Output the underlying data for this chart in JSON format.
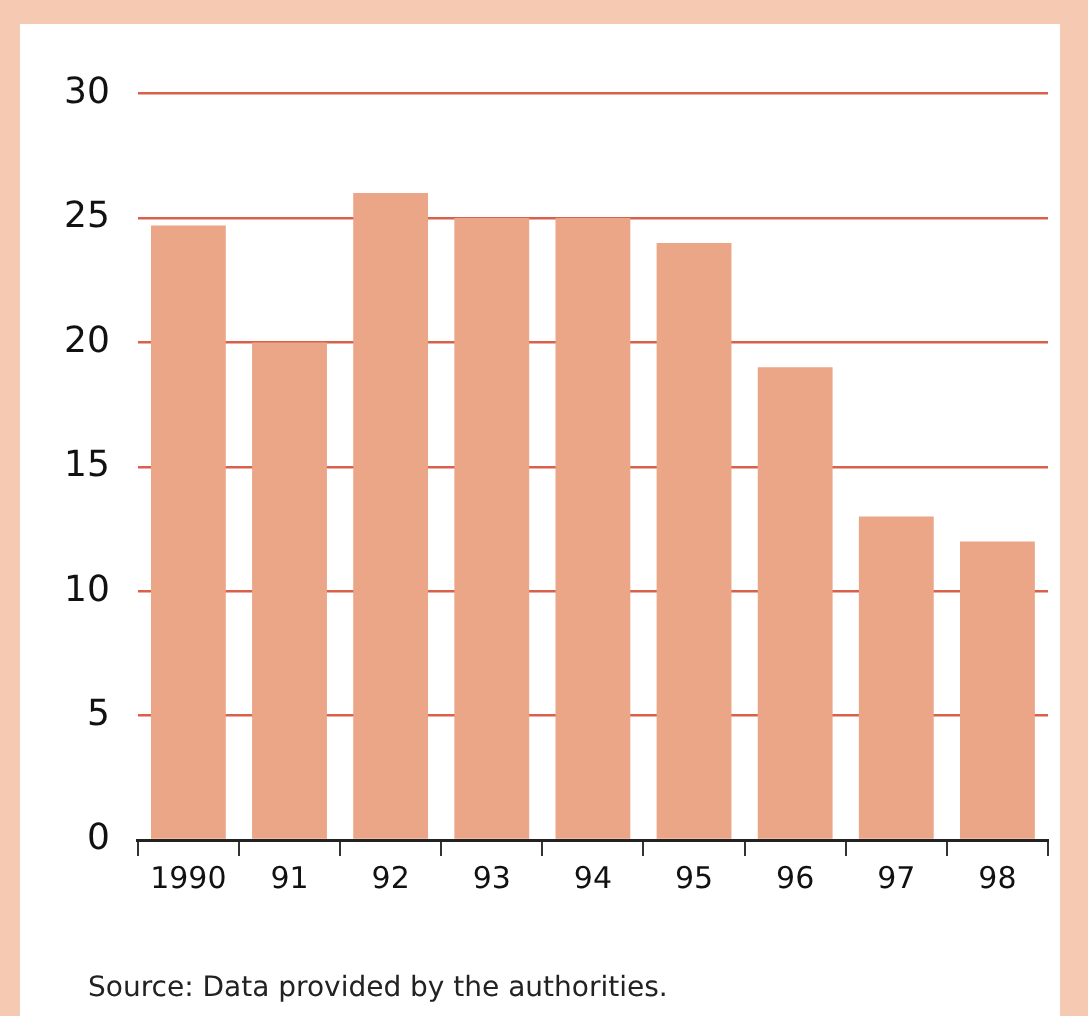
{
  "chart_data": {
    "type": "bar",
    "categories": [
      "1990",
      "91",
      "92",
      "93",
      "94",
      "95",
      "96",
      "97",
      "98"
    ],
    "values": [
      24.7,
      20,
      26,
      25,
      25,
      24,
      19,
      13,
      12
    ],
    "color": "#eba587",
    "ylim": [
      0,
      30
    ],
    "yticks": [
      0,
      5,
      10,
      15,
      20,
      25,
      30
    ],
    "grid": "y",
    "legend": false,
    "annotations": [
      "Source:  Data provided by the authorities."
    ]
  }
}
